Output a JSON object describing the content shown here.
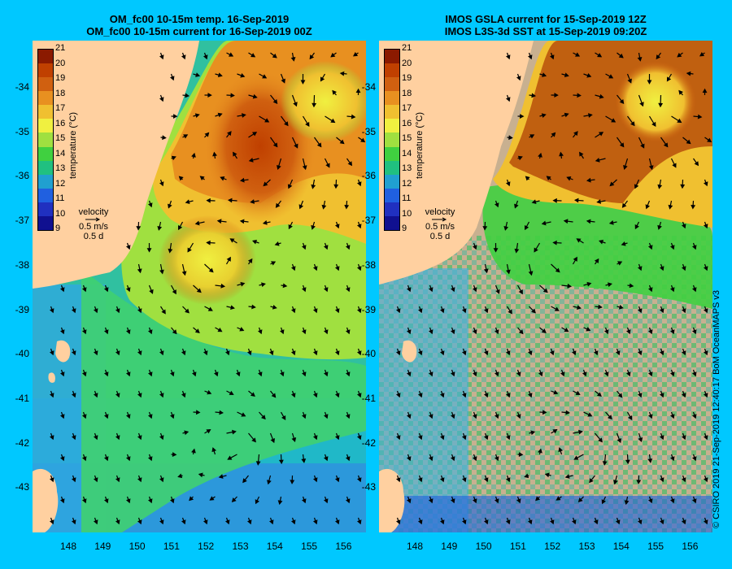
{
  "left_panel": {
    "title_line1": "OM_fc00 10-15m temp. 16-Sep-2019",
    "title_line2": "OM_fc00 10-15m current for 16-Sep-2019 00Z"
  },
  "right_panel": {
    "title_line1": "IMOS GSLA current for 15-Sep-2019 12Z",
    "title_line2": "IMOS L3S-3d SST at 15-Sep-2019 09:20Z"
  },
  "axes": {
    "lat_labels": [
      "-34",
      "-35",
      "-36",
      "-37",
      "-38",
      "-39",
      "-40",
      "-41",
      "-42",
      "-43"
    ],
    "lon_labels": [
      "148",
      "149",
      "150",
      "151",
      "152",
      "153",
      "154",
      "155",
      "156"
    ]
  },
  "colorbar": {
    "labels": [
      "21",
      "20",
      "19",
      "18",
      "17",
      "16",
      "15",
      "14",
      "13",
      "12",
      "11",
      "10",
      "9"
    ],
    "title": "temperature (°C)",
    "colors": [
      "#8b1a00",
      "#c04000",
      "#d06010",
      "#e89020",
      "#f0c030",
      "#f0f040",
      "#a0e040",
      "#40d040",
      "#20c080",
      "#20a0d0",
      "#2060e0",
      "#2030c0",
      "#101090"
    ]
  },
  "velocity_legend": {
    "title": "velocity",
    "speed": "0.5 m/s",
    "duration": "0.5 d"
  },
  "credit": "© CSIRO 2019   21-Sep-2019 12:40:17 BoM OceanMAPS v3"
}
